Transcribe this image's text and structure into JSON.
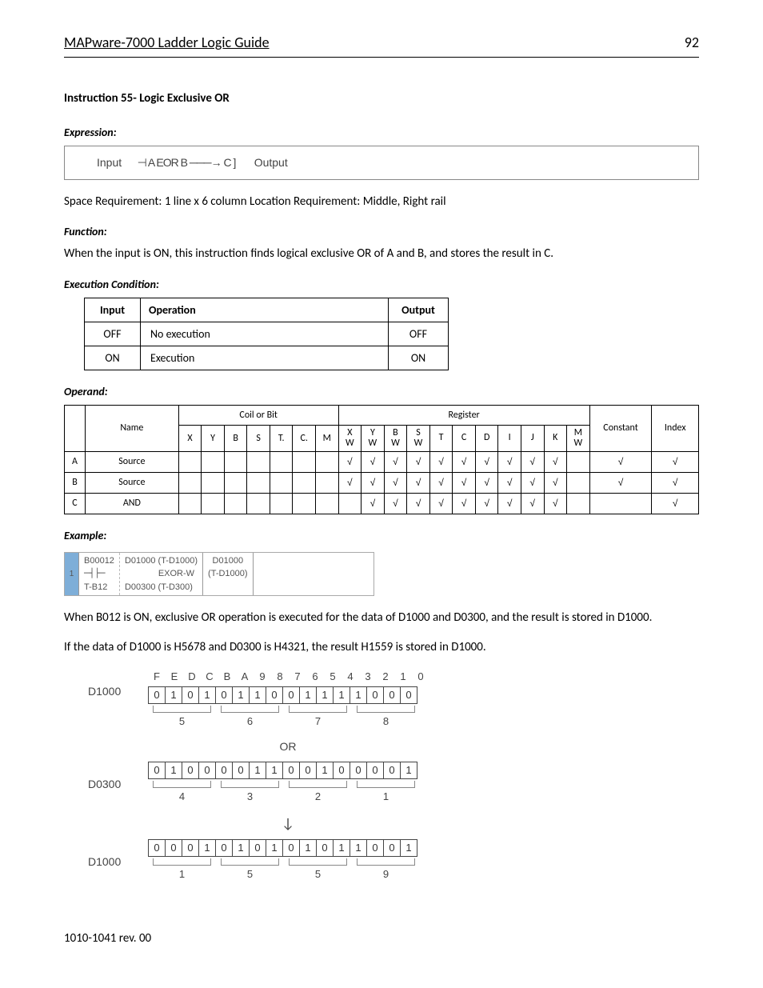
{
  "header": {
    "title": "MAPware-7000 Ladder Logic Guide",
    "page": "92"
  },
  "instruction_title": "Instruction 55- Logic Exclusive OR",
  "labels": {
    "expression": "Expression:",
    "function": "Function:",
    "exec_cond": "Execution Condition:",
    "operand": "Operand:",
    "example": "Example:"
  },
  "expression": {
    "input": "Input",
    "body": "⊣ A   EOR   B ───→ C ]",
    "output": "Output"
  },
  "space_req": "Space Requirement: 1 line x 6 column     Location Requirement: Middle, Right rail",
  "function_text": "When the input is ON, this instruction finds logical exclusive OR of A and B, and stores the result in C.",
  "exec_table": {
    "headers": {
      "input": "Input",
      "operation": "Operation",
      "output": "Output"
    },
    "rows": [
      {
        "input": "OFF",
        "operation": "No execution",
        "output": "OFF"
      },
      {
        "input": "ON",
        "operation": "Execution",
        "output": "ON"
      }
    ]
  },
  "operand_table": {
    "group_headers": {
      "coil": "Coil or Bit",
      "register": "Register",
      "constant": "Constant",
      "index": "Index"
    },
    "name_header": "Name",
    "sub_headers_coil": [
      "X",
      "Y",
      "B",
      "S",
      "T.",
      "C.",
      "M"
    ],
    "sub_headers_reg": [
      "X\nW",
      "Y\nW",
      "B\nW",
      "S\nW",
      "T",
      "C",
      "D",
      "I",
      "J",
      "K",
      "M\nW"
    ],
    "rows": [
      {
        "letter": "A",
        "name": "Source",
        "coil": [
          "",
          "",
          "",
          "",
          "",
          "",
          ""
        ],
        "reg": [
          "√",
          "√",
          "√",
          "√",
          "√",
          "√",
          "√",
          "√",
          "√",
          "√",
          ""
        ],
        "constant": "√",
        "index": "√"
      },
      {
        "letter": "B",
        "name": "Source",
        "coil": [
          "",
          "",
          "",
          "",
          "",
          "",
          ""
        ],
        "reg": [
          "√",
          "√",
          "√",
          "√",
          "√",
          "√",
          "√",
          "√",
          "√",
          "√",
          ""
        ],
        "constant": "√",
        "index": "√"
      },
      {
        "letter": "C",
        "name": "AND",
        "coil": [
          "",
          "",
          "",
          "",
          "",
          "",
          ""
        ],
        "reg": [
          "",
          "√",
          "√",
          "√",
          "√",
          "√",
          "√",
          "√",
          "√",
          "√",
          ""
        ],
        "constant": "",
        "index": "√"
      }
    ]
  },
  "example_ladder": {
    "rung": "1",
    "top": "B00012",
    "bot": "T-B12",
    "src1": "D01000 (T-D1000)",
    "src2": "D00300 (T-D300)",
    "op": "EXOR-W",
    "dest1": "D01000",
    "dest2": "(T-D1000)"
  },
  "example_text": [
    "When B012 is ON, exclusive OR operation is executed for the data of D1000 and D0300, and the result is stored in D1000.",
    "If the data of D1000 is H5678 and D0300 is H4321, the result H1559 is stored in D1000."
  ],
  "bit_diagram": {
    "col_headers": [
      "F",
      "E",
      "D",
      "C",
      "B",
      "A",
      "9",
      "8",
      "7",
      "6",
      "5",
      "4",
      "3",
      "2",
      "1",
      "0"
    ],
    "rows": [
      {
        "label": "D1000",
        "bits": [
          "0",
          "1",
          "0",
          "1",
          "0",
          "1",
          "1",
          "0",
          "0",
          "1",
          "1",
          "1",
          "1",
          "0",
          "0",
          "0"
        ],
        "nibbles": [
          "5",
          "6",
          "7",
          "8"
        ]
      },
      {
        "label": "D0300",
        "bits": [
          "0",
          "1",
          "0",
          "0",
          "0",
          "0",
          "1",
          "1",
          "0",
          "0",
          "1",
          "0",
          "0",
          "0",
          "0",
          "1"
        ],
        "nibbles": [
          "4",
          "3",
          "2",
          "1"
        ]
      },
      {
        "label": "D1000",
        "bits": [
          "0",
          "0",
          "0",
          "1",
          "0",
          "1",
          "0",
          "1",
          "0",
          "1",
          "0",
          "1",
          "1",
          "0",
          "0",
          "1"
        ],
        "nibbles": [
          "1",
          "5",
          "5",
          "9"
        ]
      }
    ],
    "op_label": "OR",
    "arrow": "↓"
  },
  "footer": "1010-1041 rev. 00"
}
